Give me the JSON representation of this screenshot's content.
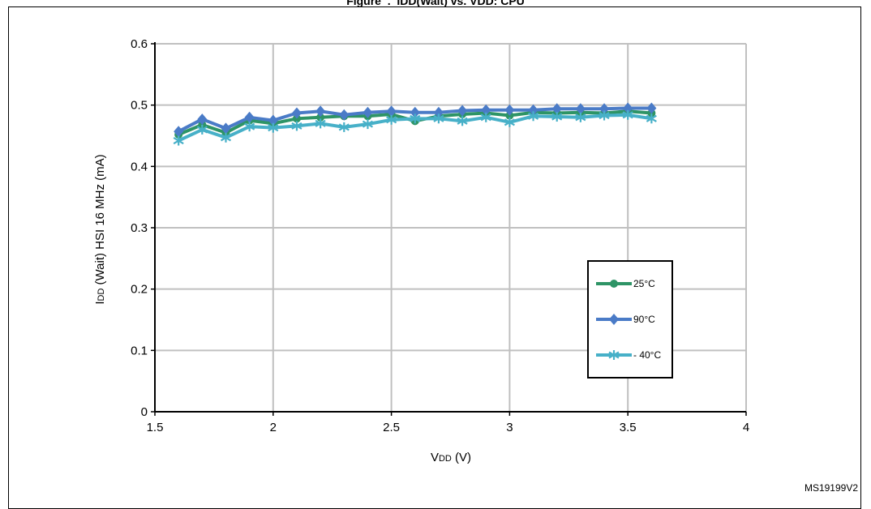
{
  "figure": {
    "title": "Figure  .  IDD(Wait) vs. VDD: CPU",
    "id": "MS19199V2"
  },
  "chart_data": {
    "type": "line",
    "xlabel": {
      "main": "V",
      "sub": "DD",
      "rest": " (V)"
    },
    "ylabel": {
      "main": "I",
      "sub": "DD",
      "rest": " (Wait) HSI 16 MHz (mA)"
    },
    "xlim": [
      1.5,
      4
    ],
    "ylim": [
      0,
      0.6
    ],
    "x_ticks": [
      "1.5",
      "2",
      "2.5",
      "3",
      "3.5",
      "4"
    ],
    "y_ticks": [
      "0",
      "0.1",
      "0.2",
      "0.3",
      "0.4",
      "0.5",
      "0.6"
    ],
    "grid": true,
    "legend_position": "bottom-right",
    "x": [
      1.6,
      1.7,
      1.8,
      1.9,
      2.0,
      2.1,
      2.2,
      2.3,
      2.4,
      2.5,
      2.6,
      2.7,
      2.8,
      2.9,
      3.0,
      3.1,
      3.2,
      3.3,
      3.4,
      3.5,
      3.6
    ],
    "series": [
      {
        "name": "25°C",
        "color": "#2e9466",
        "marker": "circle",
        "values": [
          0.452,
          0.468,
          0.455,
          0.475,
          0.47,
          0.478,
          0.48,
          0.482,
          0.482,
          0.485,
          0.474,
          0.482,
          0.485,
          0.487,
          0.483,
          0.488,
          0.487,
          0.488,
          0.487,
          0.49,
          0.487
        ]
      },
      {
        "name": "90°C",
        "color": "#4a7bc7",
        "marker": "diamond",
        "values": [
          0.457,
          0.477,
          0.462,
          0.48,
          0.475,
          0.487,
          0.49,
          0.484,
          0.488,
          0.49,
          0.488,
          0.488,
          0.491,
          0.492,
          0.492,
          0.492,
          0.494,
          0.494,
          0.494,
          0.495,
          0.495
        ]
      },
      {
        "name": "- 40°C",
        "color": "#47b0c8",
        "marker": "asterisk",
        "values": [
          0.442,
          0.46,
          0.447,
          0.465,
          0.463,
          0.466,
          0.47,
          0.464,
          0.469,
          0.476,
          0.478,
          0.478,
          0.474,
          0.48,
          0.472,
          0.482,
          0.481,
          0.48,
          0.483,
          0.484,
          0.478
        ]
      }
    ]
  }
}
